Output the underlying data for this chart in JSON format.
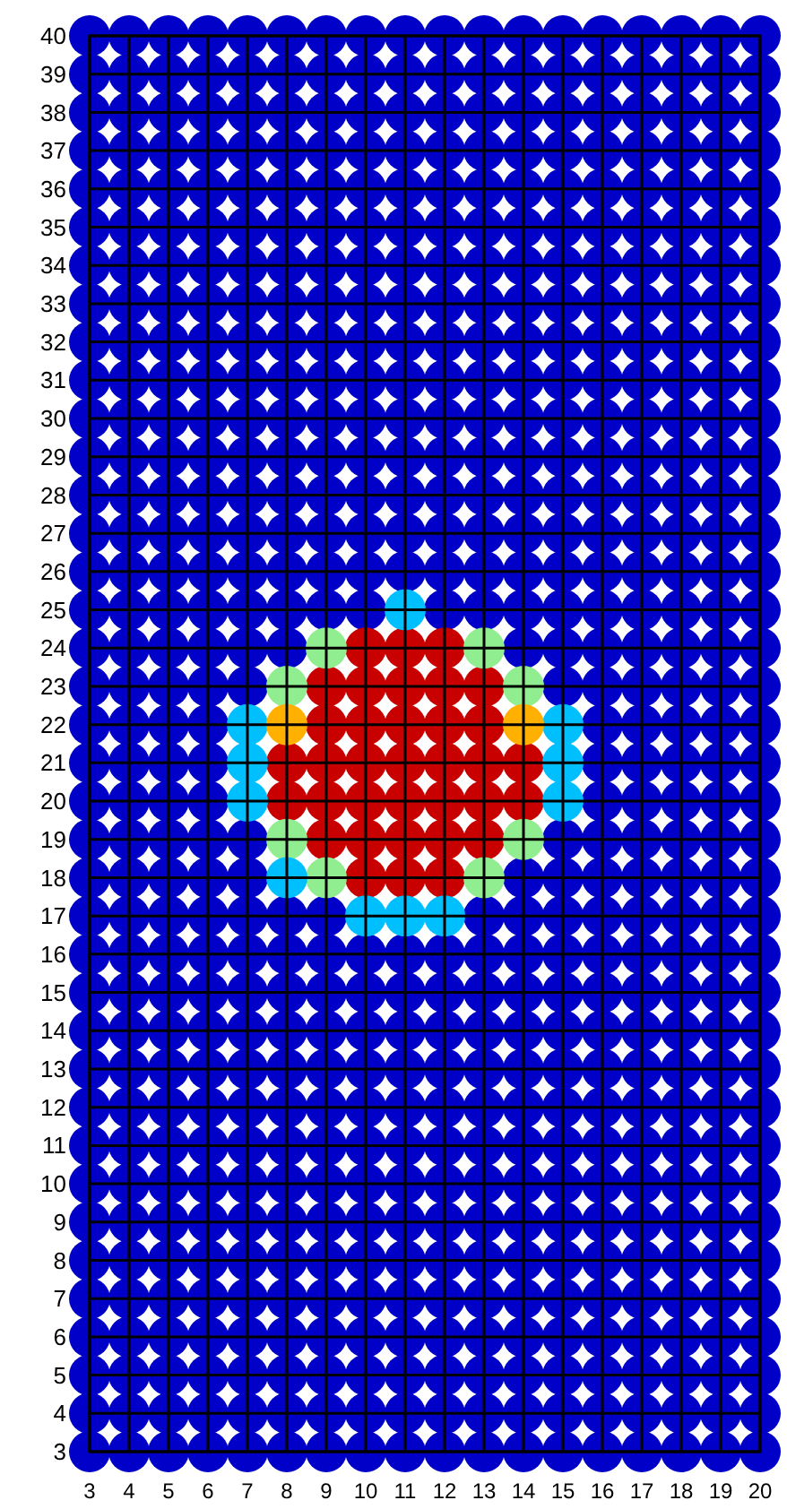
{
  "chart_data": {
    "type": "scatter",
    "xlim": [
      3,
      20
    ],
    "ylim": [
      3,
      40
    ],
    "xticks": [
      3,
      4,
      5,
      6,
      7,
      8,
      9,
      10,
      11,
      12,
      13,
      14,
      15,
      16,
      17,
      18,
      19,
      20
    ],
    "yticks": [
      3,
      4,
      5,
      6,
      7,
      8,
      9,
      10,
      11,
      12,
      13,
      14,
      15,
      16,
      17,
      18,
      19,
      20,
      21,
      22,
      23,
      24,
      25,
      26,
      27,
      28,
      29,
      30,
      31,
      32,
      33,
      34,
      35,
      36,
      37,
      38,
      39,
      40
    ],
    "grid": true,
    "marker": "circle",
    "series": [
      {
        "color": "#0000c8",
        "x": [
          3,
          4,
          5,
          6,
          7,
          8,
          9,
          10,
          11,
          12,
          13,
          14,
          15,
          16,
          17,
          18,
          19,
          20,
          3,
          4,
          5,
          6,
          7,
          8,
          9,
          10,
          11,
          12,
          13,
          14,
          15,
          16,
          17,
          18,
          19,
          20,
          3,
          4,
          5,
          6,
          7,
          8,
          9,
          10,
          11,
          12,
          13,
          14,
          15,
          16,
          17,
          18,
          19,
          20,
          3,
          4,
          5,
          6,
          7,
          8,
          9,
          10,
          11,
          12,
          13,
          14,
          15,
          16,
          17,
          18,
          19,
          20,
          3,
          4,
          5,
          6,
          7,
          8,
          9,
          10,
          11,
          12,
          13,
          14,
          15,
          16,
          17,
          18,
          19,
          20,
          3,
          4,
          5,
          6,
          7,
          8,
          9,
          10,
          11,
          12,
          13,
          14,
          15,
          16,
          17,
          18,
          19,
          20,
          3,
          4,
          5,
          6,
          7,
          8,
          9,
          10,
          11,
          12,
          13,
          14,
          15,
          16,
          17,
          18,
          19,
          20,
          3,
          4,
          5,
          6,
          7,
          8,
          9,
          10,
          11,
          12,
          13,
          14,
          15,
          16,
          17,
          18,
          19,
          20,
          3,
          4,
          5,
          6,
          7,
          8,
          9,
          10,
          11,
          12,
          13,
          14,
          15,
          16,
          17,
          18,
          19,
          20,
          3,
          4,
          5,
          6,
          7,
          8,
          9,
          10,
          11,
          12,
          13,
          14,
          15,
          16,
          17,
          18,
          19,
          20,
          3,
          4,
          5,
          6,
          7,
          8,
          9,
          10,
          11,
          12,
          13,
          14,
          15,
          16,
          17,
          18,
          19,
          20,
          3,
          4,
          5,
          6,
          7,
          8,
          9,
          10,
          11,
          12,
          13,
          14,
          15,
          16,
          17,
          18,
          19,
          20,
          3,
          4,
          5,
          6,
          7,
          8,
          9,
          10,
          11,
          12,
          13,
          14,
          15,
          16,
          17,
          18,
          19,
          20,
          3,
          4,
          5,
          6,
          7,
          8,
          9,
          10,
          11,
          12,
          13,
          14,
          15,
          16,
          17,
          18,
          19,
          20,
          3,
          4,
          5,
          6,
          7,
          8,
          9,
          10,
          11,
          12,
          13,
          14,
          15,
          16,
          17,
          18,
          19,
          20,
          3,
          4,
          5,
          6,
          7,
          8,
          9,
          10,
          12,
          13,
          14,
          15,
          16,
          17,
          18,
          19,
          20,
          3,
          4,
          5,
          6,
          7,
          8,
          14,
          15,
          16,
          17,
          18,
          19,
          20,
          3,
          4,
          5,
          6,
          7,
          15,
          16,
          17,
          18,
          19,
          20,
          3,
          4,
          5,
          6,
          16,
          17,
          18,
          19,
          20,
          3,
          4,
          5,
          6,
          16,
          17,
          18,
          19,
          20,
          3,
          4,
          5,
          6,
          16,
          17,
          18,
          19,
          20,
          3,
          4,
          5,
          6,
          7,
          15,
          16,
          17,
          18,
          19,
          20,
          3,
          4,
          5,
          6,
          7,
          14,
          15,
          16,
          17,
          18,
          19,
          20,
          3,
          4,
          5,
          6,
          7,
          8,
          9,
          13,
          14,
          15,
          16,
          17,
          18,
          19,
          20,
          3,
          4,
          5,
          6,
          7,
          8,
          9,
          10,
          11,
          12,
          13,
          14,
          15,
          16,
          17,
          18,
          19,
          20,
          3,
          4,
          5,
          6,
          7,
          8,
          9,
          10,
          11,
          12,
          13,
          14,
          15,
          16,
          17,
          18,
          19,
          20,
          3,
          4,
          5,
          6,
          7,
          8,
          9,
          10,
          11,
          12,
          13,
          14,
          15,
          16,
          17,
          18,
          19,
          20,
          3,
          4,
          5,
          6,
          7,
          8,
          9,
          10,
          11,
          12,
          13,
          14,
          15,
          16,
          17,
          18,
          19,
          20,
          3,
          4,
          5,
          6,
          7,
          8,
          9,
          10,
          11,
          12,
          13,
          14,
          15,
          16,
          17,
          18,
          19,
          20,
          3,
          4,
          5,
          6,
          7,
          8,
          9,
          10,
          11,
          12,
          13,
          14,
          15,
          16,
          17,
          18,
          19,
          20,
          3,
          4,
          5,
          6,
          7,
          8,
          9,
          10,
          11,
          12,
          13,
          14,
          15,
          16,
          17,
          18,
          19,
          20,
          3,
          4,
          5,
          6,
          7,
          8,
          9,
          10,
          11,
          12,
          13,
          14,
          15,
          16,
          17,
          18,
          19,
          20,
          3,
          4,
          5,
          6,
          7,
          8,
          9,
          10,
          11,
          12,
          13,
          14,
          15,
          16,
          17,
          18,
          19,
          20,
          3,
          4,
          5,
          6,
          7,
          8,
          9,
          10,
          11,
          12,
          13,
          14,
          15,
          16,
          17,
          18,
          19,
          20,
          3,
          4,
          5,
          6,
          7,
          8,
          9,
          10,
          11,
          12,
          13,
          14,
          15,
          16,
          17,
          18,
          19,
          20,
          3,
          4,
          5,
          6,
          7,
          8,
          9,
          10,
          11,
          12,
          13,
          14,
          15,
          16,
          17,
          18,
          19,
          20,
          3,
          4,
          5,
          6,
          7,
          8,
          9,
          10,
          11,
          12,
          13,
          14,
          15,
          16,
          17,
          18,
          19,
          20,
          3,
          4,
          5,
          6,
          7,
          8,
          9,
          10,
          11,
          12,
          13,
          14,
          15,
          16,
          17,
          18,
          19,
          20
        ],
        "values": [
          40,
          40,
          40,
          40,
          40,
          40,
          40,
          40,
          40,
          40,
          40,
          40,
          40,
          40,
          40,
          40,
          40,
          40,
          39,
          39,
          39,
          39,
          39,
          39,
          39,
          39,
          39,
          39,
          39,
          39,
          39,
          39,
          39,
          39,
          39,
          39,
          38,
          38,
          38,
          38,
          38,
          38,
          38,
          38,
          38,
          38,
          38,
          38,
          38,
          38,
          38,
          38,
          38,
          38,
          37,
          37,
          37,
          37,
          37,
          37,
          37,
          37,
          37,
          37,
          37,
          37,
          37,
          37,
          37,
          37,
          37,
          37,
          36,
          36,
          36,
          36,
          36,
          36,
          36,
          36,
          36,
          36,
          36,
          36,
          36,
          36,
          36,
          36,
          36,
          36,
          35,
          35,
          35,
          35,
          35,
          35,
          35,
          35,
          35,
          35,
          35,
          35,
          35,
          35,
          35,
          35,
          35,
          35,
          34,
          34,
          34,
          34,
          34,
          34,
          34,
          34,
          34,
          34,
          34,
          34,
          34,
          34,
          34,
          34,
          34,
          34,
          33,
          33,
          33,
          33,
          33,
          33,
          33,
          33,
          33,
          33,
          33,
          33,
          33,
          33,
          33,
          33,
          33,
          33,
          32,
          32,
          32,
          32,
          32,
          32,
          32,
          32,
          32,
          32,
          32,
          32,
          32,
          32,
          32,
          32,
          32,
          32,
          31,
          31,
          31,
          31,
          31,
          31,
          31,
          31,
          31,
          31,
          31,
          31,
          31,
          31,
          31,
          31,
          31,
          31,
          30,
          30,
          30,
          30,
          30,
          30,
          30,
          30,
          30,
          30,
          30,
          30,
          30,
          30,
          30,
          30,
          30,
          30,
          29,
          29,
          29,
          29,
          29,
          29,
          29,
          29,
          29,
          29,
          29,
          29,
          29,
          29,
          29,
          29,
          29,
          29,
          28,
          28,
          28,
          28,
          28,
          28,
          28,
          28,
          28,
          28,
          28,
          28,
          28,
          28,
          28,
          28,
          28,
          28,
          27,
          27,
          27,
          27,
          27,
          27,
          27,
          27,
          27,
          27,
          27,
          27,
          27,
          27,
          27,
          27,
          27,
          27,
          26,
          26,
          26,
          26,
          26,
          26,
          26,
          26,
          26,
          26,
          26,
          26,
          26,
          26,
          26,
          26,
          26,
          26,
          25,
          25,
          25,
          25,
          25,
          25,
          25,
          25,
          25,
          25,
          25,
          25,
          25,
          25,
          25,
          25,
          25,
          24,
          24,
          24,
          24,
          24,
          24,
          24,
          24,
          24,
          24,
          24,
          24,
          24,
          23,
          23,
          23,
          23,
          23,
          23,
          23,
          23,
          23,
          23,
          23,
          22,
          22,
          22,
          22,
          22,
          22,
          22,
          22,
          22,
          21,
          21,
          21,
          21,
          21,
          21,
          21,
          21,
          21,
          20,
          20,
          20,
          20,
          20,
          20,
          20,
          20,
          20,
          19,
          19,
          19,
          19,
          19,
          19,
          19,
          19,
          19,
          19,
          19,
          18,
          18,
          18,
          18,
          18,
          18,
          18,
          18,
          18,
          18,
          18,
          18,
          17,
          17,
          17,
          17,
          17,
          17,
          17,
          17,
          17,
          17,
          17,
          17,
          17,
          17,
          17,
          16,
          16,
          16,
          16,
          16,
          16,
          16,
          16,
          16,
          16,
          16,
          16,
          16,
          16,
          16,
          16,
          16,
          16,
          15,
          15,
          15,
          15,
          15,
          15,
          15,
          15,
          15,
          15,
          15,
          15,
          15,
          15,
          15,
          15,
          15,
          15,
          14,
          14,
          14,
          14,
          14,
          14,
          14,
          14,
          14,
          14,
          14,
          14,
          14,
          14,
          14,
          14,
          14,
          14,
          13,
          13,
          13,
          13,
          13,
          13,
          13,
          13,
          13,
          13,
          13,
          13,
          13,
          13,
          13,
          13,
          13,
          13,
          12,
          12,
          12,
          12,
          12,
          12,
          12,
          12,
          12,
          12,
          12,
          12,
          12,
          12,
          12,
          12,
          12,
          12,
          11,
          11,
          11,
          11,
          11,
          11,
          11,
          11,
          11,
          11,
          11,
          11,
          11,
          11,
          11,
          11,
          11,
          11,
          10,
          10,
          10,
          10,
          10,
          10,
          10,
          10,
          10,
          10,
          10,
          10,
          10,
          10,
          10,
          10,
          10,
          10,
          9,
          9,
          9,
          9,
          9,
          9,
          9,
          9,
          9,
          9,
          9,
          9,
          9,
          9,
          9,
          9,
          9,
          9,
          8,
          8,
          8,
          8,
          8,
          8,
          8,
          8,
          8,
          8,
          8,
          8,
          8,
          8,
          8,
          8,
          8,
          8,
          7,
          7,
          7,
          7,
          7,
          7,
          7,
          7,
          7,
          7,
          7,
          7,
          7,
          7,
          7,
          7,
          7,
          7,
          6,
          6,
          6,
          6,
          6,
          6,
          6,
          6,
          6,
          6,
          6,
          6,
          6,
          6,
          6,
          6,
          6,
          6,
          5,
          5,
          5,
          5,
          5,
          5,
          5,
          5,
          5,
          5,
          5,
          5,
          5,
          5,
          5,
          5,
          5,
          5,
          4,
          4,
          4,
          4,
          4,
          4,
          4,
          4,
          4,
          4,
          4,
          4,
          4,
          4,
          4,
          4,
          4,
          4,
          3,
          3,
          3,
          3,
          3,
          3,
          3,
          3,
          3,
          3,
          3,
          3,
          3,
          3,
          3,
          3,
          3,
          3
        ]
      },
      {
        "color": "#c80000",
        "x": [
          10,
          11,
          12,
          9,
          10,
          11,
          12,
          13,
          9,
          10,
          11,
          12,
          13,
          8,
          9,
          10,
          11,
          12,
          13,
          14,
          8,
          9,
          10,
          11,
          12,
          13,
          14,
          9,
          10,
          11,
          12,
          13,
          10,
          11,
          12
        ],
        "values": [
          24,
          24,
          24,
          23,
          23,
          23,
          23,
          23,
          22,
          22,
          22,
          22,
          22,
          21,
          21,
          21,
          21,
          21,
          21,
          21,
          20,
          20,
          20,
          20,
          20,
          20,
          20,
          19,
          19,
          19,
          19,
          19,
          18,
          18,
          18
        ]
      },
      {
        "color": "#90ee90",
        "x": [
          9,
          13,
          8,
          14,
          8,
          14,
          9,
          13
        ],
        "values": [
          24,
          24,
          23,
          23,
          19,
          19,
          18,
          18
        ]
      },
      {
        "color": "#00bfff",
        "x": [
          11,
          7,
          15,
          7,
          15,
          7,
          15,
          8,
          10,
          11,
          12
        ],
        "values": [
          25,
          22,
          22,
          21,
          21,
          20,
          20,
          18,
          17,
          17,
          17
        ]
      },
      {
        "color": "#ffb000",
        "x": [
          8,
          14
        ],
        "values": [
          22,
          22
        ]
      }
    ]
  }
}
